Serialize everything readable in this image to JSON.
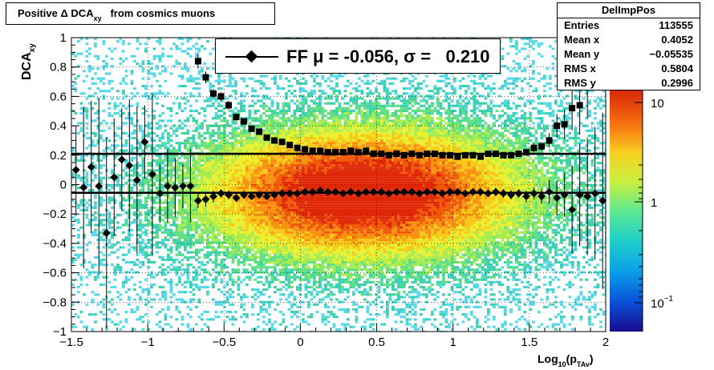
{
  "chart_data": {
    "type": "heatmap",
    "title": "Positive Δ DCA",
    "title_sub": "xy",
    "title_rest": "from cosmics muons",
    "xlabel_main": "Log",
    "xlabel_sub1": "10",
    "xlabel_mid": "(p",
    "xlabel_sub2": "TAv",
    "xlabel_end": ")",
    "ylabel_main": "DCA",
    "ylabel_sub": "xy",
    "xlim": [
      -1.5,
      2.0
    ],
    "ylim": [
      -1.0,
      1.0
    ],
    "x_ticks": [
      "−1.5",
      "−1",
      "−0.5",
      "0",
      "0.5",
      "1",
      "1.5",
      "2"
    ],
    "y_ticks": [
      "1",
      "0.8",
      "0.6",
      "0.4",
      "0.2",
      "0",
      "−0.2",
      "−0.4",
      "−0.6",
      "−0.8",
      "−1"
    ],
    "color_scale": "log",
    "z_ticks": [
      "10",
      "1",
      "10"
    ],
    "z_tick_exp": "−1",
    "grid": true,
    "horizontal_lines": [
      0.21,
      -0.056
    ],
    "legend_label": "FF μ = -0.056, σ =   0.210",
    "legend_placement": "top-center",
    "mean_points": {
      "x": [
        -1.47,
        -1.42,
        -1.37,
        -1.32,
        -1.27,
        -1.22,
        -1.17,
        -1.12,
        -1.07,
        -1.02,
        -0.97,
        -0.92,
        -0.87,
        -0.82,
        -0.77,
        -0.72,
        -0.67,
        -0.62,
        -0.57,
        -0.52,
        -0.47,
        -0.42,
        -0.37,
        -0.32,
        -0.27,
        -0.22,
        -0.17,
        -0.12,
        -0.07,
        -0.02,
        0.03,
        0.08,
        0.13,
        0.18,
        0.23,
        0.28,
        0.33,
        0.38,
        0.43,
        0.48,
        0.53,
        0.58,
        0.63,
        0.68,
        0.73,
        0.78,
        0.83,
        0.88,
        0.93,
        0.98,
        1.03,
        1.08,
        1.13,
        1.18,
        1.23,
        1.28,
        1.33,
        1.38,
        1.43,
        1.48,
        1.53,
        1.58,
        1.63,
        1.68,
        1.73,
        1.78,
        1.83,
        1.88,
        1.93,
        1.98
      ],
      "y": [
        0.1,
        -0.02,
        0.12,
        -0.01,
        -0.33,
        0.05,
        0.17,
        0.13,
        0.03,
        0.29,
        0.07,
        -0.06,
        -0.01,
        -0.02,
        -0.01,
        -0.01,
        -0.11,
        -0.1,
        -0.08,
        -0.06,
        -0.07,
        -0.09,
        -0.07,
        -0.08,
        -0.07,
        -0.08,
        -0.07,
        -0.06,
        -0.06,
        -0.06,
        -0.05,
        -0.05,
        -0.04,
        -0.05,
        -0.05,
        -0.06,
        -0.05,
        -0.06,
        -0.05,
        -0.05,
        -0.05,
        -0.06,
        -0.05,
        -0.05,
        -0.05,
        -0.06,
        -0.05,
        -0.05,
        -0.06,
        -0.05,
        -0.05,
        -0.06,
        -0.05,
        -0.05,
        -0.06,
        -0.05,
        -0.06,
        -0.07,
        -0.06,
        -0.08,
        -0.06,
        -0.08,
        -0.05,
        -0.09,
        -0.07,
        -0.17,
        -0.07,
        -0.08,
        -0.06,
        -0.11
      ],
      "err": [
        0.3,
        0.55,
        0.45,
        0.6,
        0.65,
        0.4,
        0.35,
        0.45,
        0.5,
        0.25,
        0.55,
        0.2,
        0.25,
        0.2,
        0.15,
        0.25,
        0.05,
        0.05,
        0.04,
        0.03,
        0.03,
        0.03,
        0.02,
        0.02,
        0.02,
        0.02,
        0.02,
        0.02,
        0.02,
        0.02,
        0.02,
        0.02,
        0.02,
        0.02,
        0.02,
        0.02,
        0.02,
        0.02,
        0.02,
        0.02,
        0.02,
        0.02,
        0.02,
        0.02,
        0.02,
        0.02,
        0.02,
        0.02,
        0.02,
        0.02,
        0.02,
        0.02,
        0.02,
        0.02,
        0.02,
        0.03,
        0.03,
        0.03,
        0.03,
        0.04,
        0.04,
        0.05,
        0.08,
        0.12,
        0.15,
        0.3,
        0.35,
        0.4,
        0.45,
        0.6
      ]
    },
    "sigma_points": {
      "x": [
        -0.67,
        -0.62,
        -0.57,
        -0.52,
        -0.47,
        -0.42,
        -0.37,
        -0.32,
        -0.27,
        -0.22,
        -0.17,
        -0.12,
        -0.07,
        -0.02,
        0.03,
        0.08,
        0.13,
        0.18,
        0.23,
        0.28,
        0.33,
        0.38,
        0.43,
        0.48,
        0.53,
        0.58,
        0.63,
        0.68,
        0.73,
        0.78,
        0.83,
        0.88,
        0.93,
        0.98,
        1.03,
        1.08,
        1.13,
        1.18,
        1.23,
        1.28,
        1.33,
        1.38,
        1.43,
        1.48,
        1.53,
        1.58,
        1.63,
        1.68,
        1.73,
        1.78,
        1.83,
        1.88
      ],
      "y": [
        0.84,
        0.73,
        0.62,
        0.6,
        0.54,
        0.46,
        0.43,
        0.38,
        0.36,
        0.32,
        0.3,
        0.29,
        0.27,
        0.25,
        0.24,
        0.23,
        0.23,
        0.22,
        0.22,
        0.22,
        0.23,
        0.22,
        0.23,
        0.21,
        0.21,
        0.2,
        0.21,
        0.2,
        0.21,
        0.2,
        0.21,
        0.21,
        0.2,
        0.2,
        0.19,
        0.2,
        0.2,
        0.19,
        0.21,
        0.21,
        0.2,
        0.2,
        0.21,
        0.22,
        0.25,
        0.26,
        0.3,
        0.4,
        0.41,
        0.52,
        0.54,
        0.7
      ],
      "err": [
        0.05,
        0.04,
        0.03,
        0.03,
        0.03,
        0.02,
        0.02,
        0.02,
        0.02,
        0.02,
        0.02,
        0.02,
        0.02,
        0.02,
        0.02,
        0.02,
        0.02,
        0.02,
        0.02,
        0.02,
        0.02,
        0.02,
        0.02,
        0.02,
        0.02,
        0.02,
        0.02,
        0.02,
        0.02,
        0.02,
        0.02,
        0.02,
        0.02,
        0.02,
        0.02,
        0.02,
        0.02,
        0.02,
        0.02,
        0.02,
        0.02,
        0.02,
        0.02,
        0.02,
        0.03,
        0.03,
        0.05,
        0.08,
        0.1,
        0.15,
        0.2,
        0.25
      ]
    }
  },
  "stats": {
    "title": "DelImpPos",
    "rows": [
      {
        "key": "Entries",
        "value": "113555"
      },
      {
        "key": "Mean x",
        "value": "0.4052"
      },
      {
        "key": "Mean y",
        "value": "−0.05535"
      },
      {
        "key": "RMS x",
        "value": "0.5804"
      },
      {
        "key": "RMS y",
        "value": "0.2996"
      }
    ]
  }
}
